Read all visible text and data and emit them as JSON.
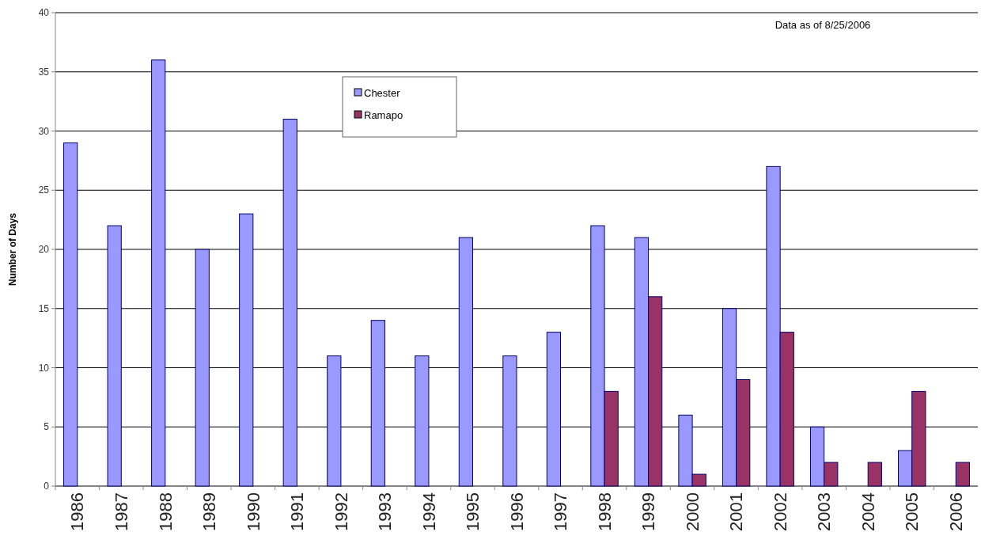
{
  "chart_data": {
    "type": "bar",
    "ylabel": "Number of Days",
    "categories": [
      "1986",
      "1987",
      "1988",
      "1989",
      "1990",
      "1991",
      "1992",
      "1993",
      "1994",
      "1995",
      "1996",
      "1997",
      "1998",
      "1999",
      "2000",
      "2001",
      "2002",
      "2003",
      "2004",
      "2005",
      "2006"
    ],
    "series": [
      {
        "name": "Chester",
        "color": "#9999ff",
        "values": [
          29,
          22,
          36,
          20,
          23,
          31,
          11,
          14,
          11,
          21,
          11,
          13,
          22,
          21,
          6,
          15,
          27,
          5,
          null,
          3,
          null
        ]
      },
      {
        "name": "Ramapo",
        "color": "#993366",
        "values": [
          null,
          null,
          null,
          null,
          null,
          null,
          null,
          null,
          null,
          null,
          null,
          null,
          8,
          16,
          1,
          9,
          13,
          2,
          2,
          8,
          2
        ]
      }
    ],
    "ylim": [
      0,
      40
    ],
    "yticks": [
      0,
      5,
      10,
      15,
      20,
      25,
      30,
      35,
      40
    ],
    "grid": "y",
    "legend": "top",
    "annotations": [
      "Data as of 8/25/2006"
    ]
  }
}
